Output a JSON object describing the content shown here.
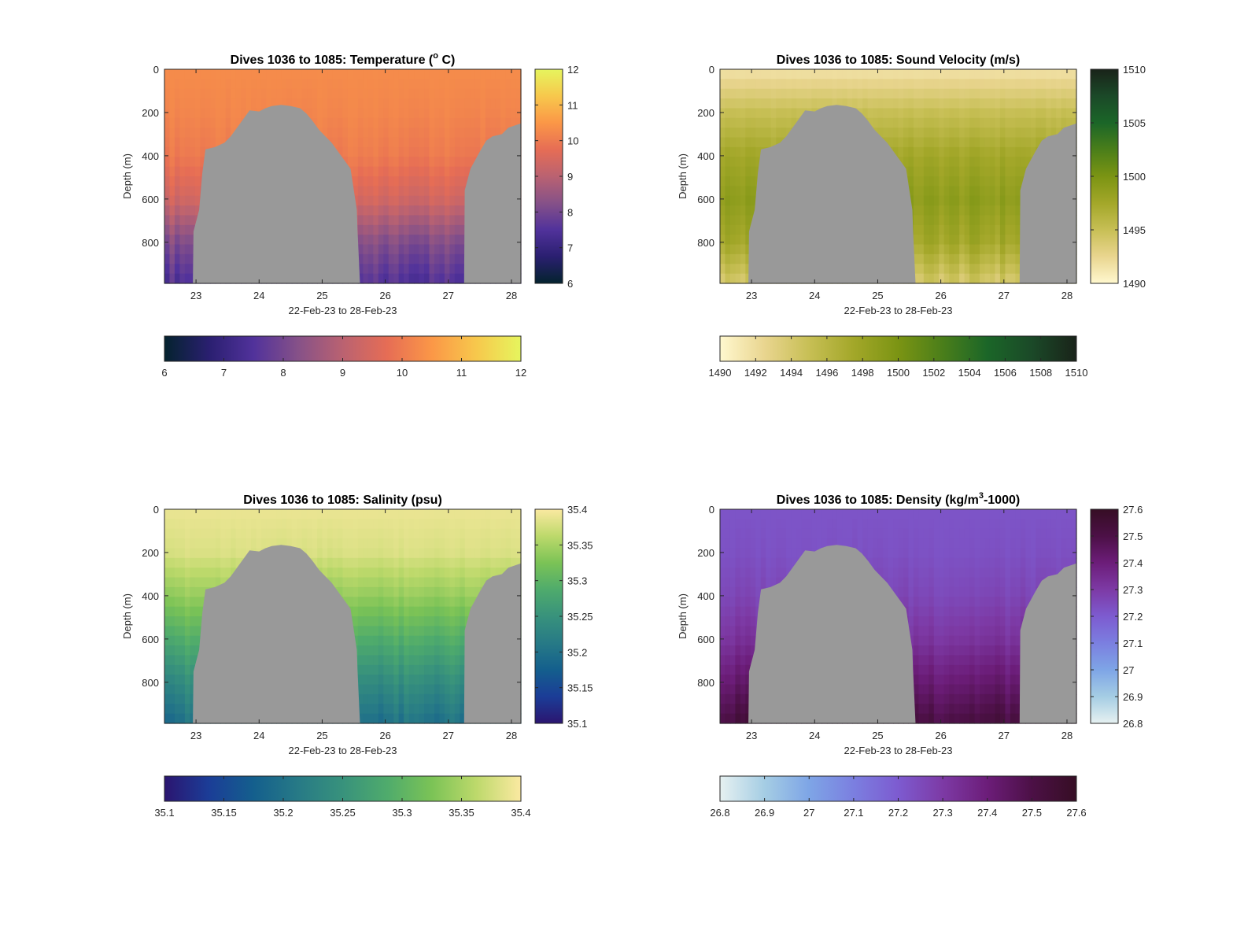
{
  "window": {
    "background": "#ffffff"
  },
  "panels": [
    {
      "key": "temperature",
      "title": "Dives 1036 to 1085: Temperature (",
      "title_sup": "o",
      "title_end": " C)",
      "colormap": "thermal",
      "clim": [
        6,
        12
      ],
      "vertical_cbar_ticks": [
        "6",
        "7",
        "8",
        "9",
        "10",
        "11",
        "12"
      ],
      "horizontal_cbar_ticks": [
        "6",
        "7",
        "8",
        "9",
        "10",
        "11",
        "12"
      ]
    },
    {
      "key": "sound_velocity",
      "title": "Dives 1036 to 1085: Sound Velocity (m/s)",
      "title_sup": "",
      "title_end": "",
      "colormap": "speed",
      "clim": [
        1490,
        1510
      ],
      "vertical_cbar_ticks": [
        "1490",
        "1495",
        "1500",
        "1505",
        "1510"
      ],
      "horizontal_cbar_ticks": [
        "1490",
        "1492",
        "1494",
        "1496",
        "1498",
        "1500",
        "1502",
        "1504",
        "1506",
        "1508",
        "1510"
      ]
    },
    {
      "key": "salinity",
      "title": "Dives 1036 to 1085: Salinity (psu)",
      "title_sup": "",
      "title_end": "",
      "colormap": "haline",
      "clim": [
        35.1,
        35.4
      ],
      "vertical_cbar_ticks": [
        "35.1",
        "35.15",
        "35.2",
        "35.25",
        "35.3",
        "35.35",
        "35.4"
      ],
      "horizontal_cbar_ticks": [
        "35.1",
        "35.15",
        "35.2",
        "35.25",
        "35.3",
        "35.35",
        "35.4"
      ]
    },
    {
      "key": "density",
      "title": "Dives 1036 to 1085: Density (kg/m",
      "title_sup": "3",
      "title_end": "-1000)",
      "colormap": "dense",
      "clim": [
        26.8,
        27.6
      ],
      "vertical_cbar_ticks": [
        "26.8",
        "26.9",
        "27",
        "27.1",
        "27.2",
        "27.3",
        "27.4",
        "27.5",
        "27.6"
      ],
      "horizontal_cbar_ticks": [
        "26.8",
        "26.9",
        "27",
        "27.1",
        "27.2",
        "27.3",
        "27.4",
        "27.5",
        "27.6"
      ]
    }
  ],
  "chart_data": {
    "type": "heatmap",
    "xlabel": "22-Feb-23 to 28-Feb-23",
    "ylabel": "Depth (m)",
    "x_ticks": [
      "23",
      "24",
      "25",
      "26",
      "27",
      "28"
    ],
    "y_ticks": [
      "0",
      "200",
      "400",
      "600",
      "800"
    ],
    "xlim": [
      22.5,
      28.15
    ],
    "ylim": [
      990,
      0
    ],
    "y_reversed": true,
    "seafloor_color": "#999999",
    "seafloor_depth_m": [
      [
        22.5,
        990
      ],
      [
        22.95,
        990
      ],
      [
        22.96,
        750
      ],
      [
        23.05,
        650
      ],
      [
        23.1,
        480
      ],
      [
        23.15,
        370
      ],
      [
        23.3,
        360
      ],
      [
        23.45,
        340
      ],
      [
        23.55,
        310
      ],
      [
        23.65,
        270
      ],
      [
        23.75,
        230
      ],
      [
        23.85,
        190
      ],
      [
        24.0,
        195
      ],
      [
        24.1,
        180
      ],
      [
        24.2,
        170
      ],
      [
        24.35,
        165
      ],
      [
        24.5,
        170
      ],
      [
        24.65,
        180
      ],
      [
        24.75,
        205
      ],
      [
        24.85,
        240
      ],
      [
        24.95,
        280
      ],
      [
        25.05,
        310
      ],
      [
        25.15,
        340
      ],
      [
        25.25,
        380
      ],
      [
        25.35,
        420
      ],
      [
        25.45,
        460
      ],
      [
        25.55,
        650
      ],
      [
        25.56,
        740
      ],
      [
        25.6,
        990
      ],
      [
        27.25,
        990
      ],
      [
        27.26,
        560
      ],
      [
        27.35,
        460
      ],
      [
        27.5,
        380
      ],
      [
        27.6,
        330
      ],
      [
        27.7,
        310
      ],
      [
        27.85,
        300
      ],
      [
        27.95,
        270
      ],
      [
        28.15,
        250
      ]
    ],
    "series": [
      {
        "name": "Temperature",
        "colormap": "thermal",
        "profile_at_depth_m": [
          [
            0,
            10.3
          ],
          [
            200,
            10.2
          ],
          [
            400,
            10.0
          ],
          [
            600,
            9.4
          ],
          [
            800,
            8.2
          ],
          [
            990,
            7.5
          ]
        ]
      },
      {
        "name": "Sound Velocity",
        "colormap": "speed",
        "profile_at_depth_m": [
          [
            0,
            1491.5
          ],
          [
            200,
            1495.0
          ],
          [
            400,
            1497.5
          ],
          [
            600,
            1498.8
          ],
          [
            800,
            1497.5
          ],
          [
            990,
            1494.0
          ]
        ]
      },
      {
        "name": "Salinity",
        "colormap": "haline",
        "profile_at_depth_m": [
          [
            0,
            35.39
          ],
          [
            200,
            35.38
          ],
          [
            400,
            35.34
          ],
          [
            600,
            35.29
          ],
          [
            800,
            35.24
          ],
          [
            990,
            35.2
          ]
        ]
      },
      {
        "name": "Density",
        "colormap": "dense",
        "profile_at_depth_m": [
          [
            0,
            27.22
          ],
          [
            200,
            27.23
          ],
          [
            400,
            27.26
          ],
          [
            600,
            27.32
          ],
          [
            800,
            27.42
          ],
          [
            990,
            27.52
          ]
        ]
      }
    ]
  }
}
